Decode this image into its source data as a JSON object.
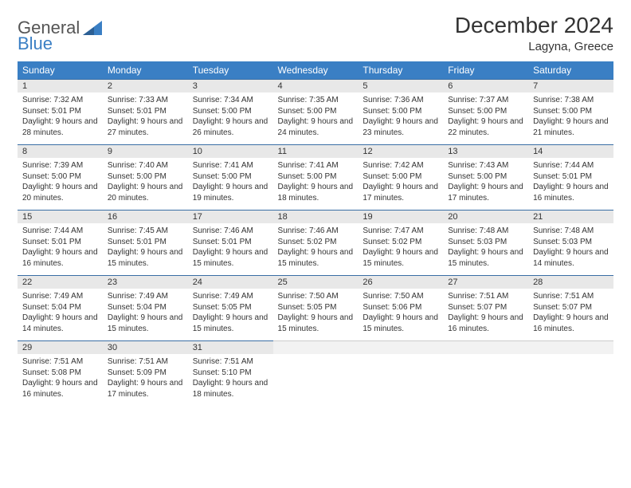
{
  "logo": {
    "part1": "General",
    "part2": "Blue",
    "color1": "#555555",
    "color2": "#3a7fc4"
  },
  "title": "December 2024",
  "location": "Lagyna, Greece",
  "colors": {
    "header_bg": "#3a7fc4",
    "header_fg": "#ffffff",
    "daynum_bg": "#e8e8e8",
    "daynum_border": "#3a6ea5",
    "text": "#333333",
    "background": "#ffffff"
  },
  "typography": {
    "title_fontsize": 28,
    "location_fontsize": 15,
    "header_fontsize": 12,
    "daynum_fontsize": 11,
    "info_fontsize": 10
  },
  "weekdays": [
    "Sunday",
    "Monday",
    "Tuesday",
    "Wednesday",
    "Thursday",
    "Friday",
    "Saturday"
  ],
  "weeks": [
    [
      {
        "day": "1",
        "sunrise": "Sunrise: 7:32 AM",
        "sunset": "Sunset: 5:01 PM",
        "daylight": "Daylight: 9 hours and 28 minutes."
      },
      {
        "day": "2",
        "sunrise": "Sunrise: 7:33 AM",
        "sunset": "Sunset: 5:01 PM",
        "daylight": "Daylight: 9 hours and 27 minutes."
      },
      {
        "day": "3",
        "sunrise": "Sunrise: 7:34 AM",
        "sunset": "Sunset: 5:00 PM",
        "daylight": "Daylight: 9 hours and 26 minutes."
      },
      {
        "day": "4",
        "sunrise": "Sunrise: 7:35 AM",
        "sunset": "Sunset: 5:00 PM",
        "daylight": "Daylight: 9 hours and 24 minutes."
      },
      {
        "day": "5",
        "sunrise": "Sunrise: 7:36 AM",
        "sunset": "Sunset: 5:00 PM",
        "daylight": "Daylight: 9 hours and 23 minutes."
      },
      {
        "day": "6",
        "sunrise": "Sunrise: 7:37 AM",
        "sunset": "Sunset: 5:00 PM",
        "daylight": "Daylight: 9 hours and 22 minutes."
      },
      {
        "day": "7",
        "sunrise": "Sunrise: 7:38 AM",
        "sunset": "Sunset: 5:00 PM",
        "daylight": "Daylight: 9 hours and 21 minutes."
      }
    ],
    [
      {
        "day": "8",
        "sunrise": "Sunrise: 7:39 AM",
        "sunset": "Sunset: 5:00 PM",
        "daylight": "Daylight: 9 hours and 20 minutes."
      },
      {
        "day": "9",
        "sunrise": "Sunrise: 7:40 AM",
        "sunset": "Sunset: 5:00 PM",
        "daylight": "Daylight: 9 hours and 20 minutes."
      },
      {
        "day": "10",
        "sunrise": "Sunrise: 7:41 AM",
        "sunset": "Sunset: 5:00 PM",
        "daylight": "Daylight: 9 hours and 19 minutes."
      },
      {
        "day": "11",
        "sunrise": "Sunrise: 7:41 AM",
        "sunset": "Sunset: 5:00 PM",
        "daylight": "Daylight: 9 hours and 18 minutes."
      },
      {
        "day": "12",
        "sunrise": "Sunrise: 7:42 AM",
        "sunset": "Sunset: 5:00 PM",
        "daylight": "Daylight: 9 hours and 17 minutes."
      },
      {
        "day": "13",
        "sunrise": "Sunrise: 7:43 AM",
        "sunset": "Sunset: 5:00 PM",
        "daylight": "Daylight: 9 hours and 17 minutes."
      },
      {
        "day": "14",
        "sunrise": "Sunrise: 7:44 AM",
        "sunset": "Sunset: 5:01 PM",
        "daylight": "Daylight: 9 hours and 16 minutes."
      }
    ],
    [
      {
        "day": "15",
        "sunrise": "Sunrise: 7:44 AM",
        "sunset": "Sunset: 5:01 PM",
        "daylight": "Daylight: 9 hours and 16 minutes."
      },
      {
        "day": "16",
        "sunrise": "Sunrise: 7:45 AM",
        "sunset": "Sunset: 5:01 PM",
        "daylight": "Daylight: 9 hours and 15 minutes."
      },
      {
        "day": "17",
        "sunrise": "Sunrise: 7:46 AM",
        "sunset": "Sunset: 5:01 PM",
        "daylight": "Daylight: 9 hours and 15 minutes."
      },
      {
        "day": "18",
        "sunrise": "Sunrise: 7:46 AM",
        "sunset": "Sunset: 5:02 PM",
        "daylight": "Daylight: 9 hours and 15 minutes."
      },
      {
        "day": "19",
        "sunrise": "Sunrise: 7:47 AM",
        "sunset": "Sunset: 5:02 PM",
        "daylight": "Daylight: 9 hours and 15 minutes."
      },
      {
        "day": "20",
        "sunrise": "Sunrise: 7:48 AM",
        "sunset": "Sunset: 5:03 PM",
        "daylight": "Daylight: 9 hours and 15 minutes."
      },
      {
        "day": "21",
        "sunrise": "Sunrise: 7:48 AM",
        "sunset": "Sunset: 5:03 PM",
        "daylight": "Daylight: 9 hours and 14 minutes."
      }
    ],
    [
      {
        "day": "22",
        "sunrise": "Sunrise: 7:49 AM",
        "sunset": "Sunset: 5:04 PM",
        "daylight": "Daylight: 9 hours and 14 minutes."
      },
      {
        "day": "23",
        "sunrise": "Sunrise: 7:49 AM",
        "sunset": "Sunset: 5:04 PM",
        "daylight": "Daylight: 9 hours and 15 minutes."
      },
      {
        "day": "24",
        "sunrise": "Sunrise: 7:49 AM",
        "sunset": "Sunset: 5:05 PM",
        "daylight": "Daylight: 9 hours and 15 minutes."
      },
      {
        "day": "25",
        "sunrise": "Sunrise: 7:50 AM",
        "sunset": "Sunset: 5:05 PM",
        "daylight": "Daylight: 9 hours and 15 minutes."
      },
      {
        "day": "26",
        "sunrise": "Sunrise: 7:50 AM",
        "sunset": "Sunset: 5:06 PM",
        "daylight": "Daylight: 9 hours and 15 minutes."
      },
      {
        "day": "27",
        "sunrise": "Sunrise: 7:51 AM",
        "sunset": "Sunset: 5:07 PM",
        "daylight": "Daylight: 9 hours and 16 minutes."
      },
      {
        "day": "28",
        "sunrise": "Sunrise: 7:51 AM",
        "sunset": "Sunset: 5:07 PM",
        "daylight": "Daylight: 9 hours and 16 minutes."
      }
    ],
    [
      {
        "day": "29",
        "sunrise": "Sunrise: 7:51 AM",
        "sunset": "Sunset: 5:08 PM",
        "daylight": "Daylight: 9 hours and 16 minutes."
      },
      {
        "day": "30",
        "sunrise": "Sunrise: 7:51 AM",
        "sunset": "Sunset: 5:09 PM",
        "daylight": "Daylight: 9 hours and 17 minutes."
      },
      {
        "day": "31",
        "sunrise": "Sunrise: 7:51 AM",
        "sunset": "Sunset: 5:10 PM",
        "daylight": "Daylight: 9 hours and 18 minutes."
      },
      null,
      null,
      null,
      null
    ]
  ]
}
